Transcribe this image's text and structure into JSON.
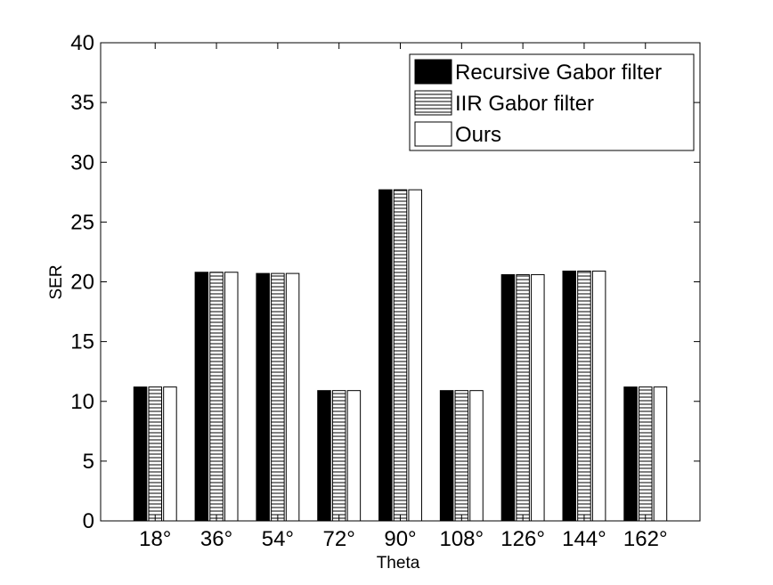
{
  "chart_data": {
    "type": "bar",
    "title": "",
    "xlabel": "Theta",
    "ylabel": "SER",
    "categories": [
      "18°",
      "36°",
      "54°",
      "72°",
      "90°",
      "108°",
      "126°",
      "144°",
      "162°"
    ],
    "ylim": [
      0,
      40
    ],
    "yticks": [
      0,
      5,
      10,
      15,
      20,
      25,
      30,
      35,
      40
    ],
    "grid": false,
    "legend_position": "top-right",
    "series": [
      {
        "name": "Recursive Gabor filter",
        "fill": "solid-black",
        "values": [
          11.2,
          20.8,
          20.7,
          10.9,
          27.7,
          10.9,
          20.6,
          20.9,
          11.2
        ]
      },
      {
        "name": "IIR Gabor filter",
        "fill": "horizontal-hatch",
        "values": [
          11.2,
          20.8,
          20.7,
          10.9,
          27.7,
          10.9,
          20.6,
          20.9,
          11.2
        ]
      },
      {
        "name": "Ours",
        "fill": "white",
        "values": [
          11.2,
          20.8,
          20.7,
          10.9,
          27.7,
          10.9,
          20.6,
          20.9,
          11.2
        ]
      }
    ],
    "colors": {
      "axis": "#000000",
      "background": "#ffffff",
      "solid": "#000000",
      "hollow": "#ffffff"
    }
  }
}
